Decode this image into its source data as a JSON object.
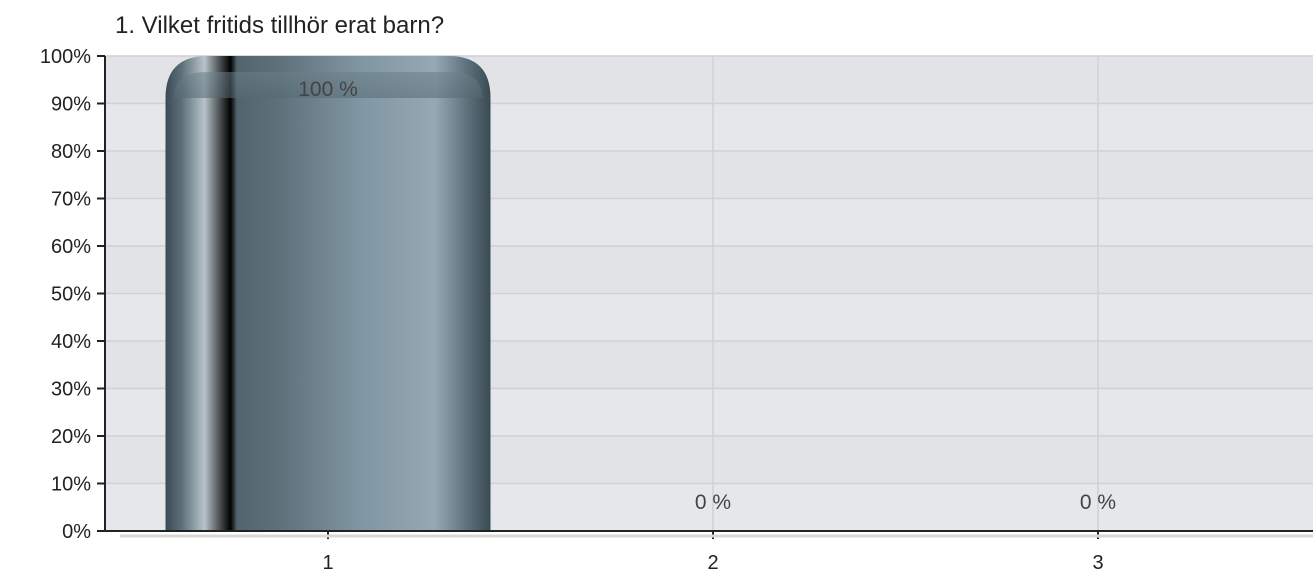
{
  "chart_data": {
    "type": "bar",
    "title": "1. Vilket fritids tillhör erat barn?",
    "categories": [
      "1",
      "2",
      "3"
    ],
    "values": [
      100,
      0,
      0
    ],
    "value_labels": [
      "100 %",
      "0 %",
      "0 %"
    ],
    "yticks": [
      "0%",
      "10%",
      "20%",
      "30%",
      "40%",
      "50%",
      "60%",
      "70%",
      "80%",
      "90%",
      "100%"
    ],
    "xlabel": "",
    "ylabel": "",
    "ylim": [
      0,
      100
    ],
    "grid": true,
    "legend": "none",
    "colors": {
      "bar": "#7e96a3",
      "bar_dark": "#3c4e57",
      "plot_background": "#e6e7ea",
      "gridline": "#cfd1d5",
      "axis": "#222222"
    }
  }
}
